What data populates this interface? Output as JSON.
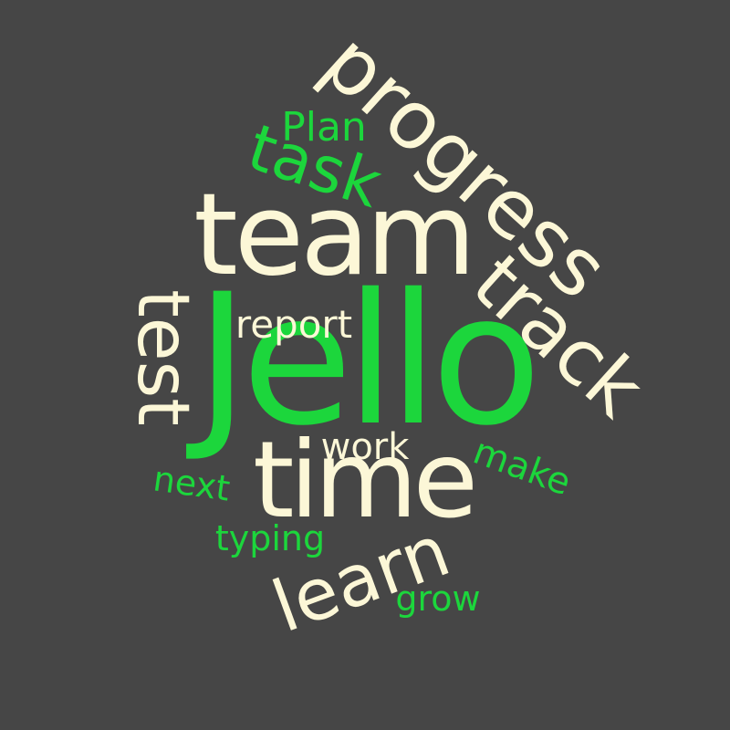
{
  "background_color": "#464646",
  "colors": {
    "primary_word": "#fcf7d7",
    "accent_word": "#1cd63c"
  },
  "words": {
    "jello": "Jello",
    "team": "team",
    "time": "time",
    "progress": "progress",
    "track": "track",
    "test": "test",
    "learn": "learn",
    "task": "task",
    "plan": "Plan",
    "report": "report",
    "work": "work",
    "make": "make",
    "next": "next",
    "typing": "typing",
    "grow": "grow"
  }
}
